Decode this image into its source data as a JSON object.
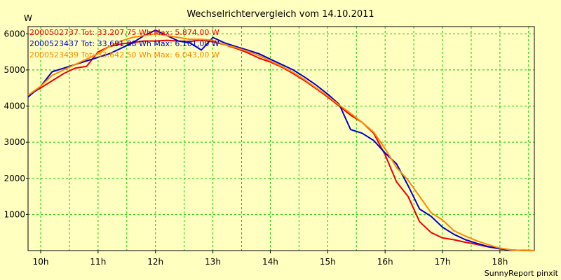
{
  "chart_data": {
    "type": "line",
    "title": "Wechselrichtervergleich vom 14.10.2011",
    "ylabel": "W",
    "footer": "SunnyReport pinxit",
    "ylim": [
      0,
      6200
    ],
    "xlim": [
      9.78,
      18.6
    ],
    "y_ticks": [
      1000,
      2000,
      3000,
      4000,
      5000,
      6000
    ],
    "x_ticks": [
      10,
      11,
      12,
      13,
      14,
      15,
      16,
      17,
      18
    ],
    "x_tick_labels": [
      "10h",
      "11h",
      "12h",
      "13h",
      "14h",
      "15h",
      "16h",
      "17h",
      "18h"
    ],
    "x_grid": [
      10,
      10.5,
      11,
      11.5,
      12,
      12.5,
      13,
      13.5,
      14,
      14.5,
      15,
      15.5,
      16,
      16.5,
      17,
      17.5,
      18,
      18.5
    ],
    "grid": true,
    "legend_position": "top-left",
    "colors": {
      "background": "#ffffc0",
      "plot_background": "#ffffc0",
      "grid": "#00cc00"
    },
    "series": [
      {
        "name": "2000502737 Tot: 33.207,75 Wh Max: 5.874,00 W",
        "color": "#ee0000",
        "x": [
          9.78,
          10.0,
          10.2,
          10.4,
          10.6,
          10.8,
          11.0,
          11.2,
          11.4,
          11.6,
          11.8,
          12.0,
          12.2,
          12.4,
          12.6,
          12.8,
          13.0,
          13.2,
          13.4,
          13.6,
          13.8,
          14.0,
          14.2,
          14.4,
          14.6,
          14.8,
          15.0,
          15.2,
          15.4,
          15.6,
          15.8,
          16.0,
          16.2,
          16.4,
          16.6,
          16.8,
          17.0,
          17.2,
          17.4,
          17.6,
          17.8,
          18.0,
          18.2,
          18.4,
          18.6
        ],
        "y": [
          4300,
          4500,
          4700,
          4900,
          5050,
          5100,
          5500,
          5650,
          5720,
          5760,
          5800,
          5800,
          5820,
          5800,
          5790,
          5830,
          5780,
          5700,
          5600,
          5480,
          5330,
          5220,
          5080,
          4900,
          4700,
          4480,
          4250,
          4000,
          3750,
          3550,
          3250,
          2650,
          1900,
          1500,
          800,
          500,
          350,
          300,
          230,
          170,
          100,
          50,
          15,
          5,
          0
        ]
      },
      {
        "name": "2000523437 Tot: 33.691,88 Wh Max: 6.101,00 W",
        "color": "#0000cc",
        "x": [
          9.78,
          10.0,
          10.2,
          10.4,
          10.6,
          10.8,
          11.0,
          11.2,
          11.4,
          11.6,
          11.8,
          12.0,
          12.2,
          12.4,
          12.6,
          12.8,
          13.0,
          13.2,
          13.4,
          13.6,
          13.8,
          14.0,
          14.2,
          14.4,
          14.6,
          14.8,
          15.0,
          15.2,
          15.4,
          15.6,
          15.8,
          16.0,
          16.2,
          16.4,
          16.6,
          16.8,
          17.0,
          17.2,
          17.4,
          17.6,
          17.8,
          18.0,
          18.2,
          18.4,
          18.6
        ],
        "y": [
          4250,
          4550,
          4950,
          5050,
          5150,
          5250,
          5350,
          5450,
          5600,
          5750,
          5950,
          6100,
          5950,
          5800,
          5750,
          5550,
          5900,
          5750,
          5650,
          5550,
          5450,
          5300,
          5150,
          5000,
          4800,
          4580,
          4330,
          4050,
          3350,
          3250,
          3050,
          2700,
          2400,
          1800,
          1150,
          950,
          650,
          450,
          300,
          200,
          110,
          50,
          15,
          5,
          0
        ]
      },
      {
        "name": "2000523439 Tot: 33.642,50 Wh Max: 6.043,00 W",
        "color": "#ff8800",
        "x": [
          9.78,
          10.0,
          10.2,
          10.4,
          10.6,
          10.8,
          11.0,
          11.2,
          11.4,
          11.6,
          11.8,
          12.0,
          12.2,
          12.4,
          12.6,
          12.8,
          13.0,
          13.2,
          13.4,
          13.6,
          13.8,
          14.0,
          14.2,
          14.4,
          14.6,
          14.8,
          15.0,
          15.2,
          15.4,
          15.6,
          15.8,
          16.0,
          16.2,
          16.4,
          16.6,
          16.8,
          17.0,
          17.2,
          17.4,
          17.6,
          17.8,
          18.0,
          18.2,
          18.4,
          18.6
        ],
        "y": [
          4300,
          4550,
          4850,
          5000,
          5150,
          5300,
          5450,
          5650,
          5800,
          5900,
          5950,
          6000,
          5950,
          5900,
          5850,
          5850,
          5820,
          5700,
          5620,
          5520,
          5400,
          5250,
          5100,
          4930,
          4730,
          4500,
          4280,
          4030,
          3800,
          3550,
          3280,
          2820,
          2300,
          1950,
          1500,
          1050,
          850,
          550,
          400,
          270,
          160,
          70,
          20,
          5,
          0
        ]
      }
    ]
  }
}
